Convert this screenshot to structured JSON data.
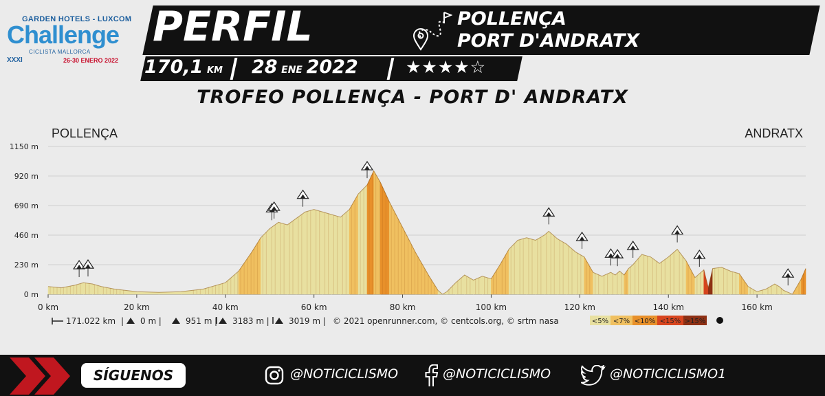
{
  "logo": {
    "line1": "GARDEN HOTELS - LUXCOM",
    "line2": "Challenge",
    "line3": "CICLISTA MALLORCA",
    "line4": "XXXI",
    "line5": "26-30 ENERO 2022"
  },
  "header": {
    "title": "PERFIL",
    "route_line1": "POLLENÇA",
    "route_line2": "PORT D'ANDRATX",
    "distance": "170,1",
    "distance_unit": "KM",
    "date_day": "28",
    "date_month": "ENE",
    "date_year": "2022",
    "stars": "★★★★☆",
    "subtitle": "TROFEO POLLENÇA - PORT D' ANDRATX"
  },
  "colors": {
    "band": "#111111",
    "accent_red": "#c0171f",
    "text": "#ffffff"
  },
  "chart_data": {
    "type": "area",
    "start_label": "POLLENÇA",
    "end_label": "ANDRATX",
    "x_unit": "km",
    "y_unit": "m",
    "xlim": [
      0,
      171
    ],
    "ylim": [
      0,
      1150
    ],
    "x_ticks": [
      "0 km",
      "20 km",
      "40 km",
      "60 km",
      "80 km",
      "100 km",
      "120 km",
      "140 km",
      "160 km"
    ],
    "y_ticks": [
      "0 m",
      "230 m",
      "460 m",
      "690 m",
      "920 m",
      "1150 m"
    ],
    "x": [
      0,
      3,
      6,
      8,
      10,
      12,
      15,
      20,
      25,
      30,
      35,
      40,
      43,
      46,
      48,
      50,
      52,
      54,
      56,
      58,
      60,
      62,
      64,
      66,
      68,
      70,
      72,
      73.5,
      75,
      77,
      80,
      83,
      86,
      88,
      89,
      90,
      92,
      94,
      96,
      98,
      100,
      102,
      104,
      106,
      108,
      110,
      112,
      113,
      115,
      117,
      119,
      121,
      123,
      125,
      127,
      128,
      129,
      130,
      131,
      132,
      134,
      136,
      138,
      140,
      142,
      144,
      146,
      148,
      149,
      150,
      152,
      154,
      156,
      158,
      160,
      162,
      164,
      165,
      166,
      168,
      169,
      170,
      171
    ],
    "y": [
      60,
      50,
      70,
      90,
      80,
      60,
      40,
      20,
      15,
      20,
      40,
      90,
      180,
      330,
      440,
      510,
      560,
      540,
      590,
      640,
      660,
      640,
      620,
      600,
      660,
      780,
      850,
      960,
      870,
      720,
      520,
      320,
      140,
      30,
      0,
      20,
      90,
      150,
      110,
      140,
      120,
      230,
      350,
      420,
      440,
      420,
      460,
      490,
      430,
      390,
      330,
      290,
      170,
      140,
      170,
      150,
      180,
      150,
      200,
      230,
      310,
      290,
      240,
      290,
      350,
      260,
      130,
      190,
      50,
      200,
      210,
      180,
      160,
      60,
      20,
      40,
      80,
      60,
      30,
      0,
      60,
      120,
      200
    ],
    "climb_markers_km": [
      7,
      9,
      50.5,
      51,
      57.5,
      72,
      113,
      120.5,
      127,
      128.5,
      132,
      142,
      147,
      167
    ],
    "stats": {
      "distance": "171.022 km",
      "min_alt": "0 m",
      "max_alt": "951 m",
      "ascent": "3183 m",
      "descent": "3019 m",
      "credit": "© 2021 openrunner.com, © centcols.org, © srtm nasa"
    },
    "legend": [
      {
        "label": "<5%",
        "color": "#e8e0a0"
      },
      {
        "label": "<7%",
        "color": "#f0c060"
      },
      {
        "label": "<10%",
        "color": "#e8902a"
      },
      {
        "label": "<15%",
        "color": "#d8451f"
      },
      {
        "label": ">15%",
        "color": "#8e3014"
      }
    ]
  },
  "footer": {
    "follow": "SÍGUENOS",
    "instagram": "@NOTICICLISMO",
    "facebook": "@NOTICICLISMO",
    "twitter": "@NOTICICLISMO1"
  }
}
